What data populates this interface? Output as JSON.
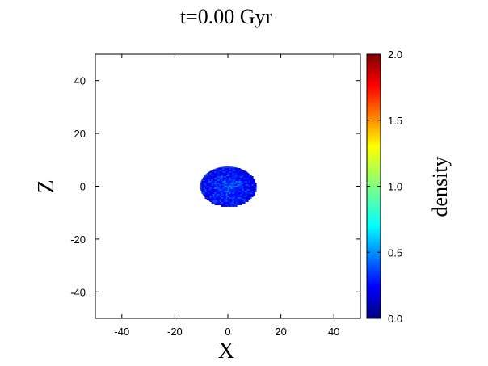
{
  "chart_data": {
    "type": "heatmap",
    "title": "t=0.00 Gyr",
    "xlabel": "X",
    "ylabel": "Z",
    "xlim": [
      -50,
      50
    ],
    "ylim": [
      -50,
      50
    ],
    "x_ticks": [
      "-40",
      "-20",
      "0",
      "20",
      "40"
    ],
    "y_ticks": [
      "40",
      "20",
      "0",
      "-20",
      "-40"
    ],
    "grid": false,
    "colorbar": {
      "label": "density",
      "range": [
        0.0,
        2.0
      ],
      "ticks": [
        "2.0",
        "1.5",
        "1.0",
        "0.5",
        "0.0"
      ],
      "colormap": "jet"
    },
    "blob": {
      "shape": "ellipse",
      "center": [
        0,
        0
      ],
      "semi_axes": [
        10.5,
        7.5
      ],
      "density_range": [
        0.05,
        0.6
      ],
      "dominant_color": "#1a3fd8"
    }
  }
}
